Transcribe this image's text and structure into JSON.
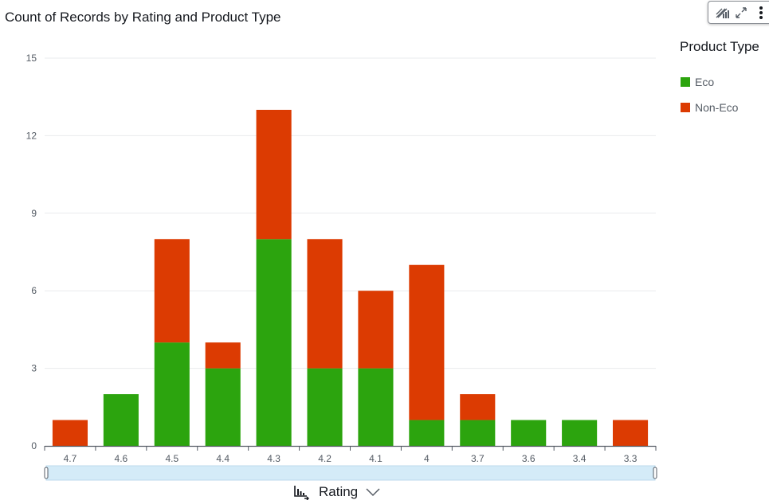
{
  "title": "Count of Records by Rating and Product Type",
  "toolbar": {
    "icons": [
      "bar-chart-format-icon",
      "expand-icon",
      "more-options-icon"
    ]
  },
  "legend": {
    "title": "Product Type",
    "items": [
      {
        "label": "Eco",
        "color": "#2ca40e"
      },
      {
        "label": "Non-Eco",
        "color": "#dc3b02"
      }
    ]
  },
  "x_axis_control": {
    "label": "Rating"
  },
  "colors": {
    "eco": "#2ca40e",
    "non_eco": "#dc3b02",
    "grid": "#e9ebed",
    "axis": "#545b64",
    "scroll_track": "#d4ebf8"
  },
  "chart_data": {
    "type": "bar",
    "stacked": true,
    "title": "Count of Records by Rating and Product Type",
    "xlabel": "Rating",
    "ylabel": "",
    "categories": [
      "4.7",
      "4.6",
      "4.5",
      "4.4",
      "4.3",
      "4.2",
      "4.1",
      "4",
      "3.7",
      "3.6",
      "3.4",
      "3.3"
    ],
    "series": [
      {
        "name": "Eco",
        "color": "#2ca40e",
        "values": [
          0,
          2,
          4,
          3,
          8,
          3,
          3,
          1,
          1,
          1,
          1,
          0
        ]
      },
      {
        "name": "Non-Eco",
        "color": "#dc3b02",
        "values": [
          1,
          0,
          4,
          1,
          5,
          5,
          3,
          6,
          1,
          0,
          0,
          1
        ]
      }
    ],
    "ylim": [
      0,
      15
    ],
    "yticks": [
      0,
      3,
      6,
      9,
      12,
      15
    ],
    "grid": true,
    "legend_position": "right"
  }
}
